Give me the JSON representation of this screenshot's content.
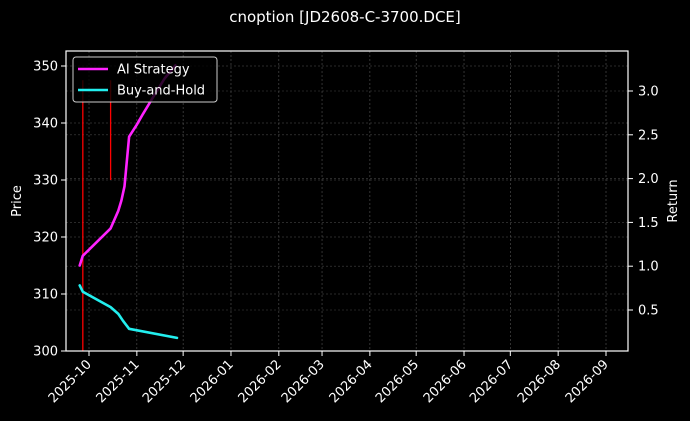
{
  "chart_data": {
    "type": "line",
    "title": "cnoption [JD2608-C-3700.DCE]",
    "xlabel": "",
    "ylabel": "Price",
    "ylabel_right": "Return",
    "ylim": [
      300,
      352.5
    ],
    "ylim_right": [
      0.03,
      3.45
    ],
    "grid": true,
    "legend_position": "upper left",
    "x_ticks": [
      "2025-10",
      "2025-11",
      "2025-12",
      "2026-01",
      "2026-02",
      "2026-03",
      "2026-04",
      "2026-05",
      "2026-06",
      "2026-07",
      "2026-08",
      "2026-09"
    ],
    "y_ticks": [
      300,
      310,
      320,
      330,
      340,
      350
    ],
    "y_ticks_right": [
      0.5,
      1.0,
      1.5,
      2.0,
      2.5,
      3.0
    ],
    "series": [
      {
        "name": "AI Strategy",
        "color": "#ff22ff",
        "axis": "left",
        "x": [
          "2025-09-25",
          "2025-09-27",
          "2025-10-15",
          "2025-10-20",
          "2025-10-22",
          "2025-10-24",
          "2025-10-27",
          "2025-11-01",
          "2025-11-05",
          "2025-11-11",
          "2025-11-19",
          "2025-11-26"
        ],
        "values": [
          315.0,
          316.7,
          321.5,
          324.6,
          326.4,
          328.9,
          337.6,
          339.7,
          341.6,
          344.3,
          347.8,
          350.1
        ]
      },
      {
        "name": "Buy-and-Hold",
        "color": "#22eeee",
        "axis": "left",
        "x": [
          "2025-09-25",
          "2025-09-27",
          "2025-10-15",
          "2025-10-20",
          "2025-10-23",
          "2025-10-27",
          "2025-11-27"
        ],
        "values": [
          311.5,
          310.4,
          307.7,
          306.5,
          305.3,
          303.9,
          302.3
        ]
      }
    ],
    "vlines": [
      {
        "x": "2025-09-27",
        "ymin": 300,
        "ymax": 347.5,
        "color": "#ff0000"
      },
      {
        "x": "2025-10-15",
        "ymin": 330,
        "ymax": 347.5,
        "color": "#ff0000"
      }
    ]
  },
  "legend": {
    "items": [
      {
        "label": "AI Strategy",
        "color": "#ff22ff"
      },
      {
        "label": "Buy-and-Hold",
        "color": "#22eeee"
      }
    ]
  }
}
